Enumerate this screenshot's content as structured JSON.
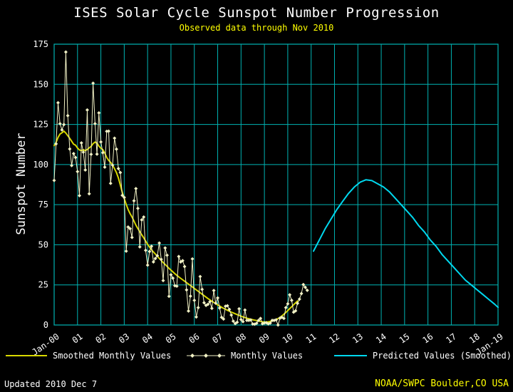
{
  "footer": {
    "updated": "Updated 2010 Dec 7",
    "source": "NOAA/SWPC Boulder,CO USA"
  },
  "chart_data": {
    "type": "line",
    "title": "ISES Solar Cycle Sunspot Number Progression",
    "subtitle": "Observed data through Nov 2010",
    "xlabel": "",
    "ylabel": "Sunspot Number",
    "ylim": [
      0,
      175
    ],
    "xlim_years": [
      2000,
      2019
    ],
    "grid": true,
    "legend_position": "bottom",
    "y_ticks": [
      0,
      25,
      50,
      75,
      100,
      125,
      150,
      175
    ],
    "x_ticks": [
      {
        "v": 0,
        "label": "Jan-00"
      },
      {
        "v": 1,
        "label": "01"
      },
      {
        "v": 2,
        "label": "02"
      },
      {
        "v": 3,
        "label": "03"
      },
      {
        "v": 4,
        "label": "04"
      },
      {
        "v": 5,
        "label": "05"
      },
      {
        "v": 6,
        "label": "06"
      },
      {
        "v": 7,
        "label": "07"
      },
      {
        "v": 8,
        "label": "08"
      },
      {
        "v": 9,
        "label": "09"
      },
      {
        "v": 10,
        "label": "10"
      },
      {
        "v": 11,
        "label": "11"
      },
      {
        "v": 12,
        "label": "12"
      },
      {
        "v": 13,
        "label": "13"
      },
      {
        "v": 14,
        "label": "14"
      },
      {
        "v": 15,
        "label": "15"
      },
      {
        "v": 16,
        "label": "16"
      },
      {
        "v": 17,
        "label": "17"
      },
      {
        "v": 18,
        "label": "18"
      },
      {
        "v": 19,
        "label": "Jan-19"
      }
    ],
    "colors": {
      "background": "#000000",
      "grid": "#00b4b4",
      "text": "#ffffff",
      "accent": "#ffff00",
      "smoothed": "#d9d900",
      "monthly": "#f0f0c4",
      "predicted": "#00d8ee"
    },
    "series": [
      {
        "name": "Smoothed Monthly Values",
        "color_key": "smoothed",
        "x_start_year": 2000,
        "x_step_months": 1,
        "values": [
          111.8,
          113.8,
          116.9,
          119.0,
          119.8,
          120.8,
          119.6,
          118.0,
          116.3,
          114.5,
          112.7,
          112.0,
          110.3,
          109.1,
          108.7,
          109.2,
          108.7,
          109.4,
          110.4,
          111.3,
          113.0,
          114.0,
          113.4,
          111.5,
          110.1,
          109.3,
          107.2,
          104.4,
          102.6,
          101.4,
          99.6,
          97.4,
          95.0,
          91.6,
          87.2,
          82.7,
          78.8,
          75.2,
          72.0,
          69.4,
          67.3,
          64.8,
          62.2,
          60.1,
          58.2,
          56.2,
          54.3,
          52.3,
          50.3,
          48.5,
          46.9,
          45.5,
          44.2,
          42.9,
          41.5,
          40.2,
          38.9,
          37.7,
          36.5,
          35.3,
          34.2,
          33.1,
          32.0,
          31.0,
          30.0,
          29.1,
          28.2,
          27.3,
          26.4,
          25.5,
          24.6,
          23.7,
          22.8,
          21.9,
          21.0,
          20.1,
          19.2,
          18.3,
          17.4,
          16.5,
          15.7,
          14.9,
          14.1,
          13.3,
          12.5,
          11.8,
          11.1,
          10.4,
          9.8,
          9.2,
          8.6,
          8.0,
          7.5,
          7.0,
          6.5,
          6.0,
          5.5,
          5.0,
          4.6,
          4.2,
          3.9,
          3.6,
          3.3,
          3.0,
          2.8,
          2.5,
          2.2,
          2.0,
          1.9,
          1.9,
          2.0,
          2.2,
          2.5,
          2.9,
          3.4,
          4.0,
          4.8,
          5.7,
          6.7,
          7.8,
          9.0,
          10.2,
          11.4,
          12.6,
          13.8,
          15.0
        ]
      },
      {
        "name": "Monthly Values",
        "color_key": "monthly",
        "markers": "diamond",
        "x_start_year": 2000,
        "x_step_months": 1,
        "values": [
          90.1,
          112.9,
          138.5,
          125.5,
          121.6,
          124.9,
          170.1,
          130.5,
          109.7,
          99.4,
          106.8,
          104.4,
          95.6,
          80.6,
          113.5,
          107.7,
          96.6,
          134.0,
          81.8,
          106.4,
          150.7,
          125.5,
          106.5,
          132.2,
          114.1,
          107.4,
          98.4,
          120.7,
          120.8,
          88.3,
          99.6,
          116.4,
          109.6,
          97.5,
          95.0,
          80.8,
          79.5,
          46.0,
          61.1,
          60.0,
          54.6,
          77.4,
          85.0,
          72.7,
          48.7,
          65.5,
          67.3,
          46.5,
          37.3,
          45.8,
          49.1,
          39.3,
          41.5,
          43.2,
          51.1,
          40.9,
          27.7,
          48.0,
          43.5,
          17.9,
          31.3,
          29.2,
          24.5,
          24.2,
          42.7,
          39.3,
          40.1,
          36.4,
          21.9,
          8.7,
          18.0,
          41.2,
          15.4,
          5.0,
          10.8,
          30.2,
          22.2,
          13.9,
          12.2,
          12.9,
          14.5,
          10.4,
          21.5,
          13.6,
          16.9,
          10.6,
          4.8,
          3.7,
          11.7,
          12.0,
          9.7,
          6.2,
          2.4,
          0.9,
          1.7,
          10.1,
          3.4,
          2.1,
          9.3,
          2.9,
          2.9,
          3.1,
          0.6,
          0.5,
          1.1,
          2.9,
          4.1,
          0.8,
          1.3,
          1.4,
          0.7,
          1.2,
          2.9,
          2.9,
          3.2,
          0.0,
          4.3,
          4.8,
          4.1,
          10.8,
          13.2,
          18.8,
          15.4,
          8.0,
          8.8,
          13.5,
          16.1,
          19.6,
          25.2,
          23.5,
          21.6
        ]
      },
      {
        "name": "Predicted Values (Smoothed)",
        "color_key": "predicted",
        "points": [
          [
            11.1,
            46
          ],
          [
            11.35,
            53
          ],
          [
            11.6,
            60
          ],
          [
            11.85,
            66
          ],
          [
            12.1,
            72
          ],
          [
            12.35,
            77
          ],
          [
            12.6,
            82
          ],
          [
            12.85,
            86
          ],
          [
            13.1,
            89
          ],
          [
            13.35,
            90.5
          ],
          [
            13.6,
            90
          ],
          [
            13.85,
            88
          ],
          [
            14.1,
            86
          ],
          [
            14.35,
            83
          ],
          [
            14.6,
            79
          ],
          [
            14.85,
            75
          ],
          [
            15.1,
            71
          ],
          [
            15.35,
            67
          ],
          [
            15.6,
            62
          ],
          [
            15.85,
            58
          ],
          [
            16.1,
            53
          ],
          [
            16.35,
            49
          ],
          [
            16.6,
            44
          ],
          [
            16.85,
            40
          ],
          [
            17.1,
            36
          ],
          [
            17.35,
            32
          ],
          [
            17.6,
            28
          ],
          [
            17.85,
            25
          ],
          [
            18.1,
            22
          ],
          [
            18.35,
            19
          ],
          [
            18.6,
            16
          ],
          [
            18.85,
            13
          ],
          [
            19.0,
            11
          ]
        ]
      }
    ]
  }
}
